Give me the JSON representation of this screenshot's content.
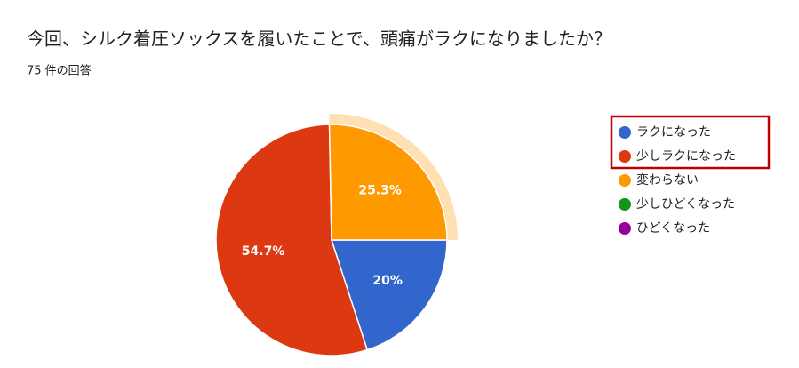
{
  "chart_data": {
    "type": "pie",
    "title": "今回、シルク着圧ソックスを履いたことで、頭痛がラクになりましたか？",
    "subtitle": "75 件の回答",
    "categories": [
      "ラクになった",
      "少しラクになった",
      "変わらない",
      "少しひどくなった",
      "ひどくなった"
    ],
    "values": [
      20,
      54.7,
      25.3,
      0,
      0
    ],
    "value_labels": [
      "20%",
      "54.7%",
      "25.3%",
      null,
      null
    ],
    "colors": [
      "#3366cc",
      "#dc3912",
      "#ff9900",
      "#109618",
      "#990099"
    ],
    "legend": "right"
  }
}
